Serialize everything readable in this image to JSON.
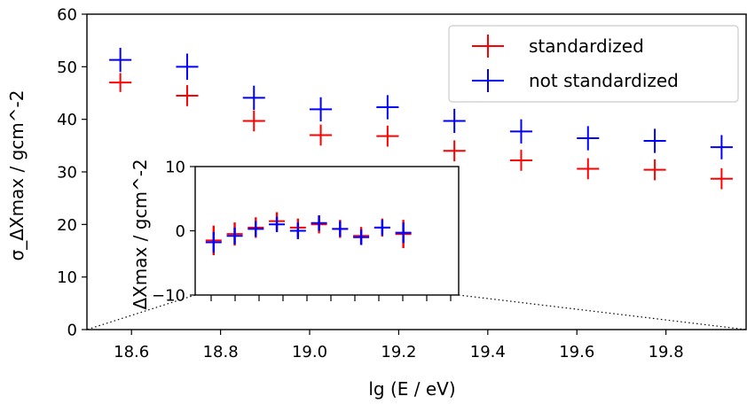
{
  "chart_data": [
    {
      "type": "scatter",
      "role": "main",
      "xlabel": "lg (E / eV)",
      "ylabel": "σ_ΔXmax / gcm^-2",
      "xlim": [
        18.5,
        19.98
      ],
      "ylim": [
        0,
        60
      ],
      "xticks": [
        "18.6",
        "18.8",
        "19.0",
        "19.2",
        "19.4",
        "19.6",
        "19.8"
      ],
      "yticks": [
        "0",
        "10",
        "20",
        "30",
        "40",
        "50",
        "60"
      ],
      "xtick_values": [
        18.6,
        18.8,
        19.0,
        19.2,
        19.4,
        19.6,
        19.8
      ],
      "ytick_values": [
        0,
        10,
        20,
        30,
        40,
        50,
        60
      ],
      "legend_position": "upper right",
      "grid": false,
      "series": [
        {
          "name": "standardized",
          "color": "#ff0000",
          "x": [
            18.575,
            18.725,
            18.875,
            19.025,
            19.175,
            19.325,
            19.475,
            19.625,
            19.775,
            19.925
          ],
          "y": [
            47.0,
            44.5,
            39.7,
            37.0,
            36.8,
            34.0,
            32.2,
            30.6,
            30.4,
            28.7
          ],
          "xerr": [
            0.025,
            0.025,
            0.025,
            0.025,
            0.025,
            0.025,
            0.025,
            0.025,
            0.025,
            0.025
          ],
          "yerr": [
            1.8,
            2.0,
            2.0,
            2.0,
            2.0,
            2.0,
            2.0,
            2.0,
            2.0,
            2.0
          ]
        },
        {
          "name": "not standardized",
          "color": "#0000ff",
          "x": [
            18.575,
            18.725,
            18.875,
            19.025,
            19.175,
            19.325,
            19.475,
            19.625,
            19.775,
            19.925
          ],
          "y": [
            51.3,
            50.0,
            44.1,
            41.9,
            42.3,
            39.7,
            37.7,
            36.4,
            35.9,
            34.7
          ],
          "xerr": [
            0.025,
            0.025,
            0.025,
            0.025,
            0.025,
            0.025,
            0.025,
            0.025,
            0.025,
            0.025
          ],
          "yerr": [
            2.3,
            2.5,
            2.3,
            2.3,
            2.3,
            2.3,
            2.3,
            2.3,
            2.3,
            2.3
          ]
        }
      ]
    },
    {
      "type": "scatter",
      "role": "inset",
      "xlabel": "",
      "ylabel": "ΔXmax / gcm^-2",
      "ylim": [
        -10,
        10
      ],
      "yticks": [
        "10",
        "0",
        "−10"
      ],
      "ytick_values": [
        10,
        0,
        -10
      ],
      "xlim": [
        0,
        1
      ],
      "grid": false,
      "series": [
        {
          "name": "standardized",
          "color": "#ff0000",
          "x": [
            0.07,
            0.15,
            0.23,
            0.31,
            0.39,
            0.47,
            0.55,
            0.63,
            0.71,
            0.79
          ],
          "y": [
            -1.5,
            -0.5,
            0.5,
            1.5,
            0.5,
            1.0,
            0.3,
            -0.8,
            0.5,
            -0.5
          ],
          "yerr": [
            2.3,
            1.8,
            1.6,
            1.4,
            1.4,
            1.4,
            1.4,
            1.4,
            1.4,
            2.2
          ]
        },
        {
          "name": "not standardized",
          "color": "#0000ff",
          "x": [
            0.07,
            0.15,
            0.23,
            0.31,
            0.39,
            0.47,
            0.55,
            0.63,
            0.71,
            0.79
          ],
          "y": [
            -1.8,
            -0.8,
            0.3,
            1.0,
            0.0,
            1.2,
            0.3,
            -1.0,
            0.5,
            -0.3
          ],
          "yerr": [
            1.6,
            1.3,
            1.2,
            1.2,
            1.3,
            1.2,
            1.2,
            1.2,
            1.2,
            1.6
          ]
        }
      ]
    }
  ]
}
